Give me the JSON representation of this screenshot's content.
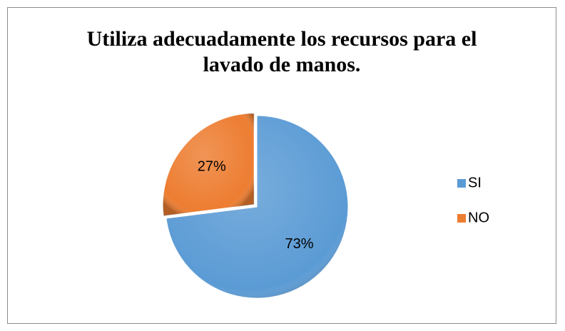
{
  "chart_data": {
    "type": "pie",
    "title": "Utiliza adecuadamente los recursos para el lavado de manos.",
    "categories": [
      "SI",
      "NO"
    ],
    "values": [
      73,
      27
    ],
    "value_labels": [
      "73%",
      "27%"
    ],
    "colors": [
      "#5b9bd5",
      "#ed7d31"
    ],
    "legend": "right"
  }
}
